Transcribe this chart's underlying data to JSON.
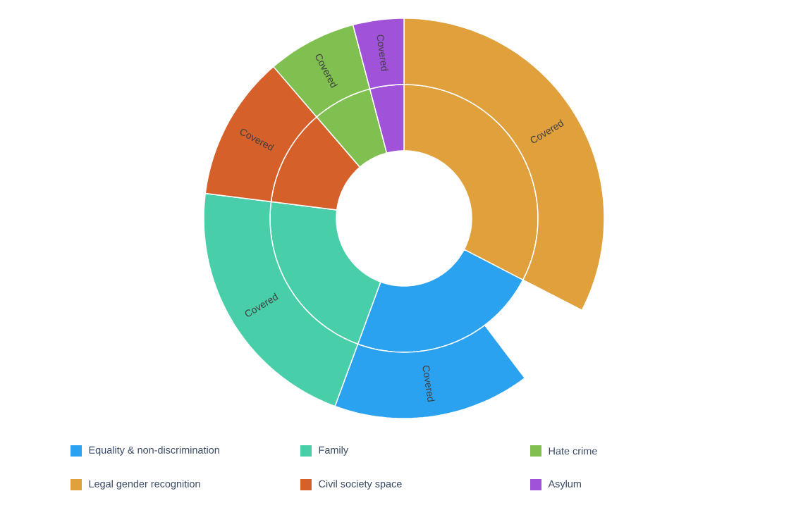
{
  "chart_data": [
    {
      "type": "donut",
      "categories": [
        "Legal gender recognition",
        "Equality & non-discrimination",
        "Family",
        "Civil society space",
        "Hate crime",
        "Asylum"
      ],
      "legend": "bottom",
      "values": [
        32.6,
        23.0,
        21.4,
        11.7,
        7.2,
        4.1
      ],
      "colors": [
        "#e0a03c",
        "#2aa2f0",
        "#48cfaa",
        "#d5602a",
        "#80c050",
        "#a052d8"
      ]
    },
    {
      "type": "donut",
      "categories": [
        "Covered",
        null,
        "Covered",
        "Covered",
        "Covered",
        "Covered",
        "Covered"
      ],
      "values": [
        32.6,
        7.1,
        15.9,
        21.4,
        11.7,
        7.2,
        4.1
      ],
      "colors": [
        "#e0a03c",
        "#ffffff",
        "#2aa2f0",
        "#48cfaa",
        "#d5602a",
        "#80c050",
        "#a052d8"
      ]
    }
  ]
}
